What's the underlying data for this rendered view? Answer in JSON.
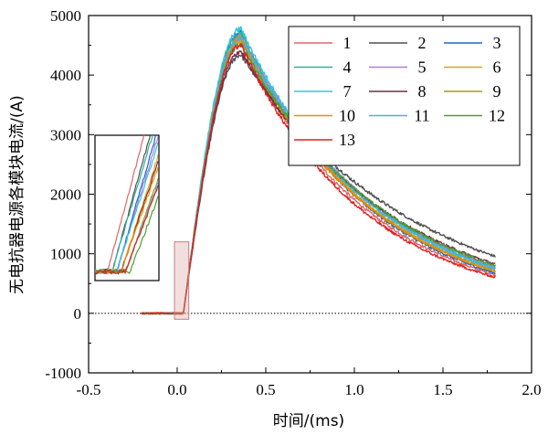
{
  "chart_data": {
    "type": "line",
    "title": "",
    "xlabel": "时间/(ms)",
    "ylabel": "无电抗器电源各模块电流/(A)",
    "xlim": [
      -0.5,
      2.0
    ],
    "ylim": [
      -1000,
      5000
    ],
    "x_ticks": [
      "-0.5",
      "0.0",
      "0.5",
      "1.0",
      "1.5",
      "2.0"
    ],
    "y_ticks": [
      "-1000",
      "0",
      "1000",
      "2000",
      "3000",
      "4000",
      "5000"
    ],
    "grid": false,
    "zero_reference_line": true,
    "legend_position": "top-right",
    "series": [
      {
        "name": "1",
        "color": "#e06666",
        "peak": 4560,
        "end": 640
      },
      {
        "name": "2",
        "color": "#505050",
        "peak": 4340,
        "end": 950
      },
      {
        "name": "3",
        "color": "#2266cc",
        "peak": 4720,
        "end": 670
      },
      {
        "name": "4",
        "color": "#2ab0a0",
        "peak": 4700,
        "end": 760
      },
      {
        "name": "5",
        "color": "#b07de0",
        "peak": 4640,
        "end": 780
      },
      {
        "name": "6",
        "color": "#e0a020",
        "peak": 4560,
        "end": 720
      },
      {
        "name": "7",
        "color": "#30c8d8",
        "peak": 4780,
        "end": 730
      },
      {
        "name": "8",
        "color": "#7a2a44",
        "peak": 4400,
        "end": 820
      },
      {
        "name": "9",
        "color": "#a89a10",
        "peak": 4600,
        "end": 700
      },
      {
        "name": "10",
        "color": "#f08c00",
        "peak": 4640,
        "end": 700
      },
      {
        "name": "11",
        "color": "#4ab0e0",
        "peak": 4620,
        "end": 750
      },
      {
        "name": "12",
        "color": "#4aa02a",
        "peak": 4520,
        "end": 800
      },
      {
        "name": "13",
        "color": "#e02020",
        "peak": 4500,
        "end": 600
      }
    ],
    "inset": {
      "x_range": [
        0.0,
        0.05
      ],
      "y_range": [
        -100,
        1200
      ]
    }
  }
}
